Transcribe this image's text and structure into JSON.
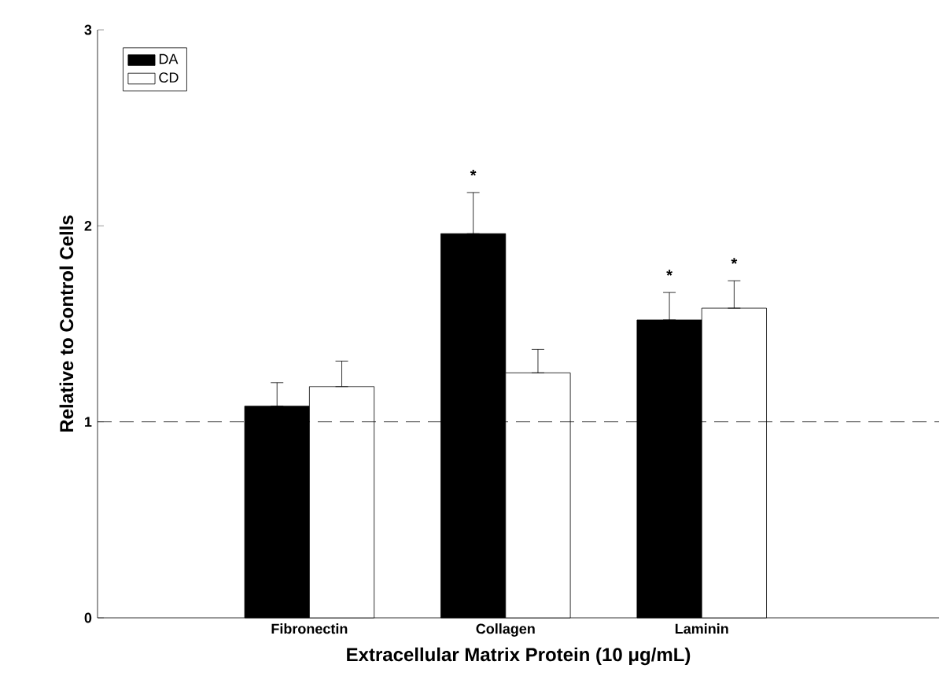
{
  "chart_data": {
    "type": "bar",
    "xlabel": "Extracellular Matrix Protein (10 μg/mL)",
    "ylabel": "Relative to Control Cells",
    "categories": [
      "Fibronectin",
      "Collagen",
      "Laminin"
    ],
    "series": [
      {
        "name": "DA",
        "color": "#000000",
        "values": [
          1.08,
          1.96,
          1.52
        ],
        "errors": [
          [
            1.08,
            1.2
          ],
          [
            1.96,
            2.17
          ],
          [
            1.52,
            1.66
          ]
        ]
      },
      {
        "name": "CD",
        "color": "#ffffff",
        "values": [
          1.18,
          1.25,
          1.58
        ],
        "errors": [
          [
            1.18,
            1.31
          ],
          [
            1.25,
            1.37
          ],
          [
            1.58,
            1.72
          ]
        ]
      }
    ],
    "ylim": [
      0,
      3
    ],
    "yticks": [
      0,
      1,
      2,
      3
    ],
    "legend": "top left",
    "grid": false,
    "ref_lines": [
      {
        "axis": "y",
        "value": 1,
        "line_style": "dashed"
      }
    ],
    "annotations": [
      "*",
      "*",
      "*"
    ]
  }
}
